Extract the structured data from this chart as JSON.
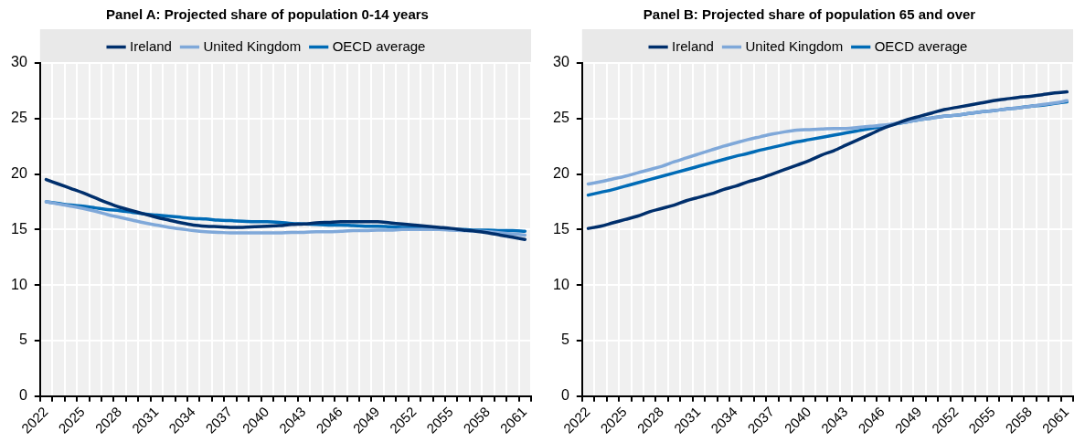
{
  "chart_data": [
    {
      "type": "line",
      "title": "Panel A: Projected share of population 0-14 years",
      "categories": [
        "2022",
        null,
        null,
        "2025",
        null,
        null,
        "2028",
        null,
        null,
        "2031",
        null,
        null,
        "2034",
        null,
        null,
        "2037",
        null,
        null,
        "2040",
        null,
        null,
        "2043",
        null,
        null,
        "2046",
        null,
        null,
        "2049",
        null,
        null,
        "2052",
        null,
        null,
        "2055",
        null,
        null,
        "2058",
        null,
        null,
        "2061"
      ],
      "series": [
        {
          "name": "Ireland",
          "color": "#002f6c",
          "values": [
            19.5,
            19.1,
            18.7,
            18.3,
            17.85,
            17.4,
            17.0,
            16.7,
            16.4,
            16.1,
            15.85,
            15.6,
            15.4,
            15.3,
            15.25,
            15.2,
            15.2,
            15.25,
            15.3,
            15.35,
            15.45,
            15.5,
            15.6,
            15.65,
            15.7,
            15.7,
            15.7,
            15.7,
            15.6,
            15.5,
            15.4,
            15.3,
            15.2,
            15.1,
            14.95,
            14.85,
            14.7,
            14.5,
            14.3,
            14.1
          ]
        },
        {
          "name": "United Kingdom",
          "color": "#7fa8d9",
          "values": [
            17.5,
            17.3,
            17.1,
            16.9,
            16.65,
            16.35,
            16.1,
            15.85,
            15.6,
            15.4,
            15.2,
            15.05,
            14.9,
            14.8,
            14.75,
            14.7,
            14.7,
            14.7,
            14.7,
            14.7,
            14.75,
            14.75,
            14.8,
            14.8,
            14.85,
            14.9,
            14.9,
            14.95,
            14.95,
            15.0,
            15.0,
            15.0,
            15.0,
            14.95,
            14.9,
            14.85,
            14.8,
            14.7,
            14.6,
            14.5
          ]
        },
        {
          "name": "OECD average",
          "color": "#006bb6",
          "values": [
            17.5,
            17.35,
            17.2,
            17.1,
            16.95,
            16.8,
            16.7,
            16.55,
            16.4,
            16.3,
            16.2,
            16.1,
            16.0,
            15.95,
            15.85,
            15.8,
            15.75,
            15.7,
            15.7,
            15.65,
            15.55,
            15.5,
            15.45,
            15.4,
            15.4,
            15.35,
            15.3,
            15.3,
            15.25,
            15.2,
            15.2,
            15.1,
            15.05,
            15.0,
            15.0,
            14.95,
            14.95,
            14.9,
            14.9,
            14.85
          ]
        }
      ],
      "ylim": [
        0,
        30
      ],
      "yticks": [
        0,
        5,
        10,
        15,
        20,
        25,
        30
      ],
      "grid": true,
      "legend": "top",
      "marker": "none"
    },
    {
      "type": "line",
      "title": "Panel B: Projected share of population 65 and over",
      "categories": [
        "2022",
        null,
        null,
        "2025",
        null,
        null,
        "2028",
        null,
        null,
        "2031",
        null,
        null,
        "2034",
        null,
        null,
        "2037",
        null,
        null,
        "2040",
        null,
        null,
        "2043",
        null,
        null,
        "2046",
        null,
        null,
        "2049",
        null,
        null,
        "2052",
        null,
        null,
        "2055",
        null,
        null,
        "2058",
        null,
        null,
        "2061"
      ],
      "series": [
        {
          "name": "Ireland",
          "color": "#002f6c",
          "values": [
            15.1,
            15.3,
            15.6,
            15.9,
            16.2,
            16.6,
            16.9,
            17.2,
            17.6,
            17.9,
            18.2,
            18.6,
            18.9,
            19.3,
            19.6,
            20.0,
            20.4,
            20.8,
            21.2,
            21.7,
            22.1,
            22.6,
            23.1,
            23.6,
            24.1,
            24.5,
            24.9,
            25.2,
            25.5,
            25.8,
            26.0,
            26.2,
            26.4,
            26.6,
            26.75,
            26.9,
            27.0,
            27.15,
            27.3,
            27.4
          ]
        },
        {
          "name": "United Kingdom",
          "color": "#7fa8d9",
          "values": [
            19.1,
            19.3,
            19.55,
            19.8,
            20.1,
            20.4,
            20.7,
            21.1,
            21.45,
            21.8,
            22.15,
            22.5,
            22.8,
            23.1,
            23.35,
            23.6,
            23.8,
            23.95,
            24.0,
            24.05,
            24.1,
            24.1,
            24.2,
            24.3,
            24.4,
            24.55,
            24.7,
            24.9,
            25.05,
            25.2,
            25.3,
            25.45,
            25.6,
            25.7,
            25.85,
            25.95,
            26.1,
            26.25,
            26.4,
            26.6
          ]
        },
        {
          "name": "OECD average",
          "color": "#006bb6",
          "values": [
            18.1,
            18.35,
            18.6,
            18.9,
            19.2,
            19.5,
            19.8,
            20.1,
            20.4,
            20.7,
            21.0,
            21.3,
            21.6,
            21.85,
            22.15,
            22.4,
            22.65,
            22.9,
            23.1,
            23.3,
            23.5,
            23.7,
            23.9,
            24.1,
            24.3,
            24.5,
            24.7,
            24.9,
            25.05,
            25.2,
            25.3,
            25.45,
            25.6,
            25.7,
            25.85,
            25.95,
            26.1,
            26.2,
            26.35,
            26.5
          ]
        }
      ],
      "ylim": [
        0,
        30
      ],
      "yticks": [
        0,
        5,
        10,
        15,
        20,
        25,
        30
      ],
      "grid": true,
      "legend": "top",
      "marker": "none"
    }
  ]
}
